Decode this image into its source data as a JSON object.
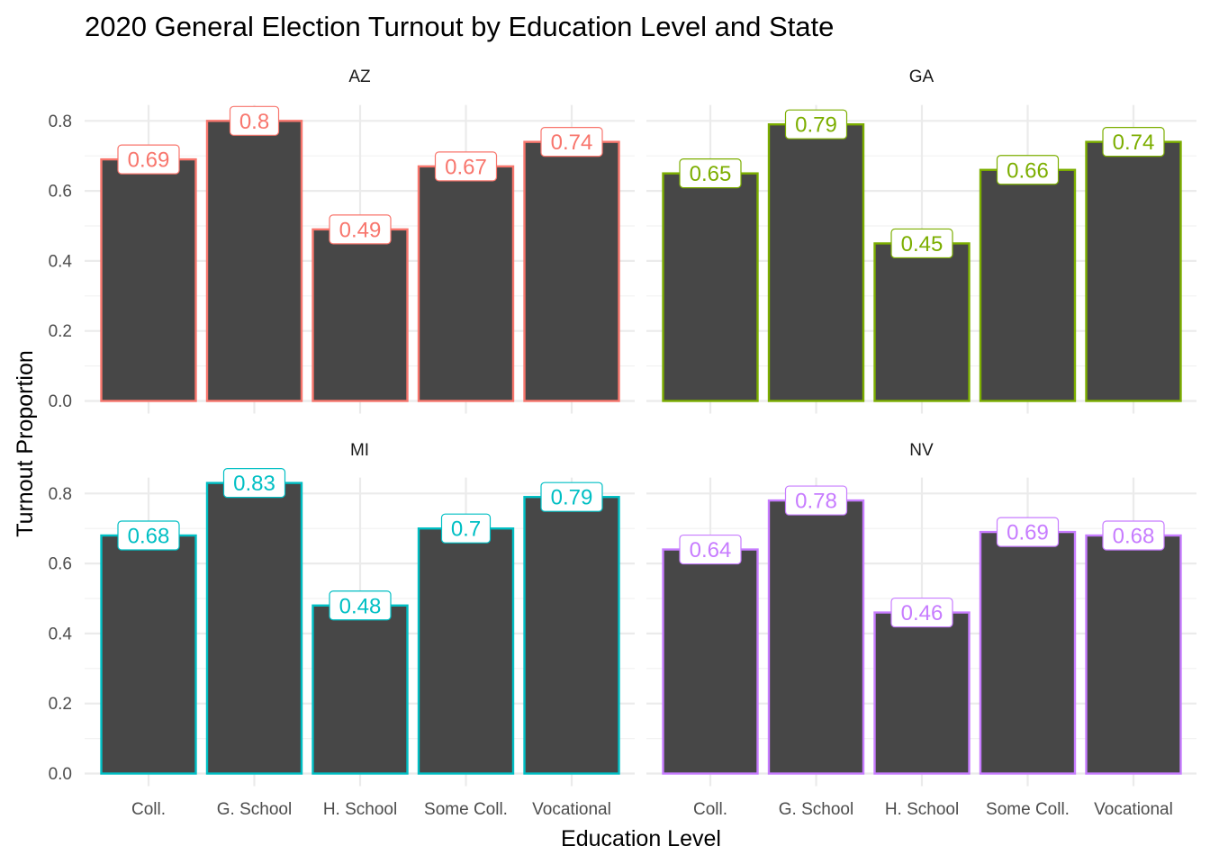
{
  "chart_data": {
    "type": "bar",
    "title": "2020 General Election Turnout by Education Level and State",
    "xlabel": "Education Level",
    "ylabel": "Turnout Proportion",
    "ylim": [
      0,
      0.83
    ],
    "y_ticks": [
      "0.0",
      "0.2",
      "0.4",
      "0.6",
      "0.8"
    ],
    "y_tick_values": [
      0,
      0.2,
      0.4,
      0.6,
      0.8
    ],
    "categories": [
      "Coll.",
      "G. School",
      "H. School",
      "Some Coll.",
      "Vocational"
    ],
    "grid": true,
    "bar_fill": "#474747",
    "panels": [
      {
        "name": "AZ",
        "color": "#F8766D",
        "values": [
          0.69,
          0.8,
          0.49,
          0.67,
          0.74
        ]
      },
      {
        "name": "GA",
        "color": "#7CAE00",
        "values": [
          0.65,
          0.79,
          0.45,
          0.66,
          0.74
        ]
      },
      {
        "name": "MI",
        "color": "#00BFC4",
        "values": [
          0.68,
          0.83,
          0.48,
          0.7,
          0.79
        ]
      },
      {
        "name": "NV",
        "color": "#C77CFF",
        "values": [
          0.64,
          0.78,
          0.46,
          0.69,
          0.68
        ]
      }
    ]
  }
}
